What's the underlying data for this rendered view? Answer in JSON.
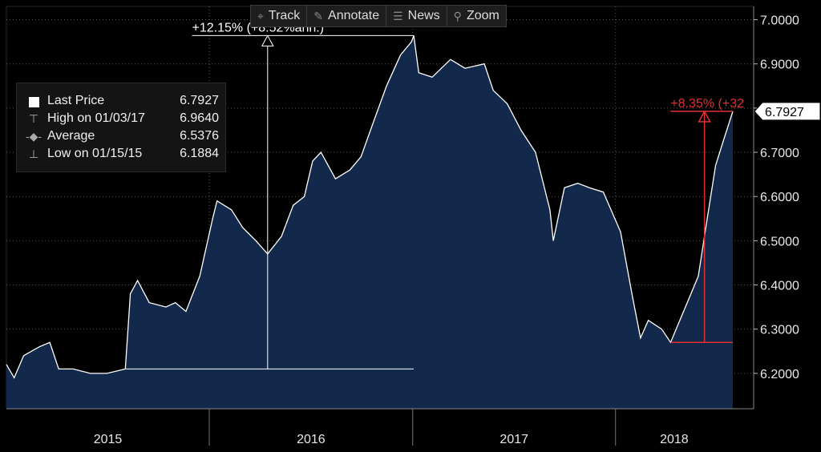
{
  "toolbar": {
    "track_label": "Track",
    "annotate_label": "Annotate",
    "news_label": "News",
    "zoom_label": "Zoom"
  },
  "legend": {
    "last_label": "Last Price",
    "last_value": "6.7927",
    "high_label": "High on 01/03/17",
    "high_value": "6.9640",
    "avg_label": "Average",
    "avg_value": "6.5376",
    "low_label": "Low on 01/15/15",
    "low_value": "6.1884"
  },
  "annotations": {
    "left_measure": "+12.15% (+8.52%ann.)",
    "right_measure": "+8.35% (+32",
    "last_price_tag": "6.7927"
  },
  "colors": {
    "background": "#000000",
    "area_fill": "#13294b",
    "line": "#ffffff",
    "right_measure": "#e03030",
    "grid": "#5a5a5a"
  },
  "chart_data": {
    "type": "area",
    "title": "",
    "xlabel": "",
    "ylabel": "",
    "x_tick_labels": [
      "2015",
      "2016",
      "2017",
      "2018"
    ],
    "y_tick_labels": [
      "6.2000",
      "6.3000",
      "6.4000",
      "6.5000",
      "6.6000",
      "6.7000",
      "6.8000",
      "6.9000",
      "7.0000"
    ],
    "ylim": [
      6.12,
      7.03
    ],
    "xlim": [
      "2015-01-01",
      "2018-07-31"
    ],
    "grid": true,
    "y_axis_side": "right",
    "legend_position": "top-left",
    "series": [
      {
        "values": [
          [
            "2015-01-01",
            6.22
          ],
          [
            "2015-01-15",
            6.19
          ],
          [
            "2015-02-01",
            6.24
          ],
          [
            "2015-03-01",
            6.26
          ],
          [
            "2015-03-20",
            6.27
          ],
          [
            "2015-04-05",
            6.21
          ],
          [
            "2015-05-01",
            6.21
          ],
          [
            "2015-06-01",
            6.2
          ],
          [
            "2015-07-01",
            6.2
          ],
          [
            "2015-08-03",
            6.21
          ],
          [
            "2015-08-12",
            6.38
          ],
          [
            "2015-08-25",
            6.41
          ],
          [
            "2015-09-15",
            6.36
          ],
          [
            "2015-10-15",
            6.35
          ],
          [
            "2015-11-01",
            6.36
          ],
          [
            "2015-11-20",
            6.34
          ],
          [
            "2015-12-15",
            6.42
          ],
          [
            "2016-01-07",
            6.55
          ],
          [
            "2016-01-15",
            6.59
          ],
          [
            "2016-02-10",
            6.57
          ],
          [
            "2016-03-01",
            6.53
          ],
          [
            "2016-03-25",
            6.5
          ],
          [
            "2016-04-15",
            6.47
          ],
          [
            "2016-05-10",
            6.51
          ],
          [
            "2016-05-31",
            6.58
          ],
          [
            "2016-06-20",
            6.6
          ],
          [
            "2016-07-05",
            6.68
          ],
          [
            "2016-07-20",
            6.7
          ],
          [
            "2016-08-15",
            6.64
          ],
          [
            "2016-09-10",
            6.66
          ],
          [
            "2016-09-30",
            6.69
          ],
          [
            "2016-10-20",
            6.76
          ],
          [
            "2016-11-15",
            6.85
          ],
          [
            "2016-12-10",
            6.92
          ],
          [
            "2016-12-30",
            6.95
          ],
          [
            "2017-01-03",
            6.964
          ],
          [
            "2017-01-12",
            6.88
          ],
          [
            "2017-02-05",
            6.87
          ],
          [
            "2017-03-10",
            6.91
          ],
          [
            "2017-04-05",
            6.89
          ],
          [
            "2017-05-10",
            6.9
          ],
          [
            "2017-05-26",
            6.84
          ],
          [
            "2017-06-20",
            6.81
          ],
          [
            "2017-07-15",
            6.75
          ],
          [
            "2017-08-10",
            6.7
          ],
          [
            "2017-09-05",
            6.57
          ],
          [
            "2017-09-11",
            6.5
          ],
          [
            "2017-10-01",
            6.62
          ],
          [
            "2017-10-25",
            6.63
          ],
          [
            "2017-11-15",
            6.62
          ],
          [
            "2017-12-10",
            6.61
          ],
          [
            "2018-01-10",
            6.52
          ],
          [
            "2018-02-01",
            6.37
          ],
          [
            "2018-02-15",
            6.28
          ],
          [
            "2018-03-01",
            6.32
          ],
          [
            "2018-03-25",
            6.3
          ],
          [
            "2018-04-10",
            6.27
          ],
          [
            "2018-04-20",
            6.3
          ],
          [
            "2018-05-10",
            6.36
          ],
          [
            "2018-05-30",
            6.42
          ],
          [
            "2018-06-15",
            6.55
          ],
          [
            "2018-06-30",
            6.67
          ],
          [
            "2018-07-15",
            6.73
          ],
          [
            "2018-07-31",
            6.7927
          ]
        ]
      }
    ]
  }
}
